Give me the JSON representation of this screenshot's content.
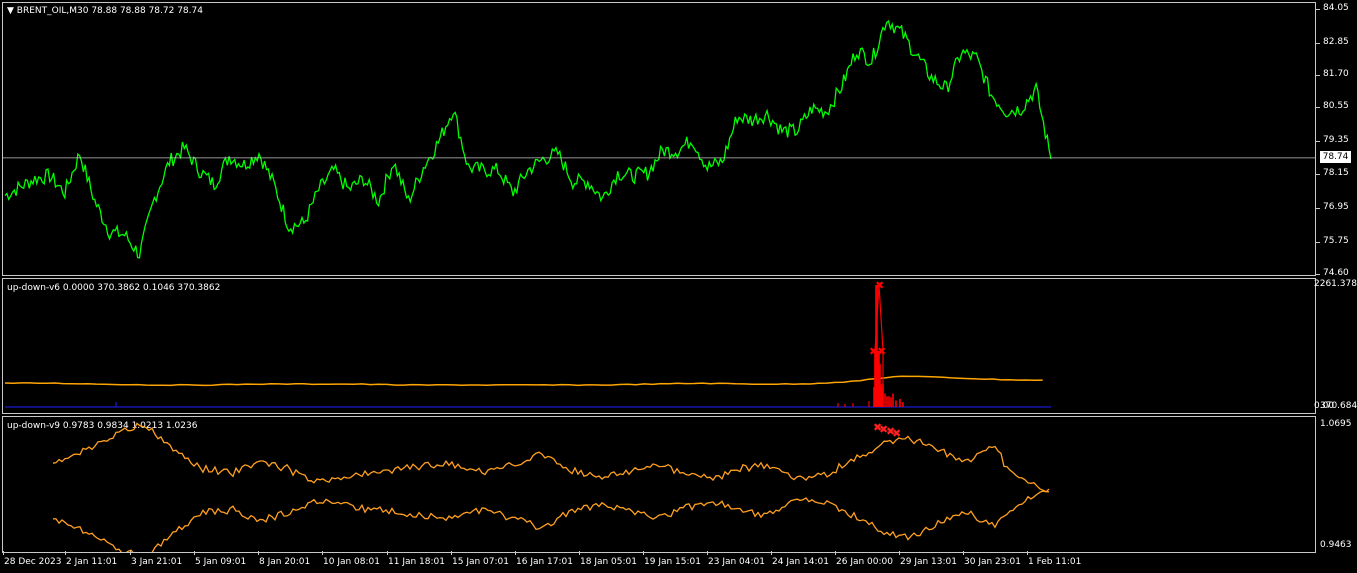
{
  "main": {
    "title_arrow": "▼",
    "title": "BRENT_OIL,M30  78.88 78.88 78.72 78.74",
    "current_price": "78.74",
    "y_labels": [
      "84.05",
      "82.85",
      "81.70",
      "80.55",
      "79.35",
      "78.15",
      "76.95",
      "75.75",
      "74.60"
    ],
    "line_color": "#00ff00"
  },
  "ind1": {
    "title": "up-down-v6 0.0000 370.3862 0.1046 370.3862",
    "y_top": "2261.378",
    "y_bottom": "0.00",
    "y_bottom2": "370.684"
  },
  "ind2": {
    "title": "up-down-v9 0.9783 0.9834 1.0213 1.0236",
    "y_top": "1.0695",
    "y_bottom": "0.9463"
  },
  "x_labels": [
    "28 Dec 2023",
    "2 Jan 11:01",
    "3 Jan 21:01",
    "5 Jan 09:01",
    "8 Jan 20:01",
    "10 Jan 08:01",
    "11 Jan 18:01",
    "15 Jan 07:01",
    "16 Jan 17:01",
    "18 Jan 05:01",
    "19 Jan 15:01",
    "23 Jan 04:01",
    "24 Jan 14:01",
    "26 Jan 00:00",
    "29 Jan 13:01",
    "30 Jan 23:01",
    "1 Feb 11:01"
  ],
  "chart_data": {
    "type": "line",
    "title": "BRENT_OIL,M30",
    "ylim": [
      74.6,
      84.05
    ],
    "series": [
      {
        "name": "BRENT_OIL",
        "values": [
          77.4,
          77.7,
          78.0,
          78.1,
          77.5,
          78.9,
          77.2,
          76.1,
          76.0,
          75.3,
          77.3,
          78.6,
          79.1,
          78.3,
          77.8,
          78.8,
          78.5,
          78.9,
          77.8,
          76.3,
          76.4,
          77.6,
          78.3,
          77.6,
          78.0,
          77.2,
          78.6,
          77.2,
          78.4,
          79.3,
          80.5,
          78.4,
          78.3,
          78.3,
          77.5,
          78.3,
          78.7,
          78.9,
          77.9,
          77.9,
          77.3,
          78.2,
          78.1,
          78.2,
          79.0,
          79.0,
          79.4,
          78.4,
          78.6,
          80.2,
          80.1,
          80.3,
          79.7,
          79.7,
          80.5,
          80.4,
          81.3,
          82.6,
          82.2,
          83.7,
          83.2,
          82.4,
          81.6,
          81.2,
          82.5,
          82.3,
          81.0,
          80.4,
          80.5,
          81.2,
          78.7
        ]
      }
    ]
  },
  "ind1_data": {
    "orange_line": [
      370,
      370,
      369,
      368,
      368,
      369,
      369,
      369,
      368,
      368,
      368,
      368,
      368,
      369,
      370,
      369,
      369,
      372,
      378,
      376,
      374,
      373
    ],
    "spike_values": [
      2261,
      1040,
      430,
      370
    ]
  }
}
